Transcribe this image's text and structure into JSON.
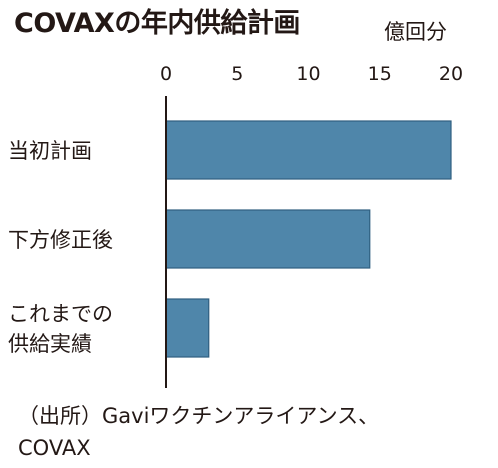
{
  "header": {
    "title": "COVAXの年内供給計画",
    "unit": "億回分"
  },
  "source": {
    "line1": "（出所）Gaviワクチンアライアンス、",
    "line2": "COVAX"
  },
  "colors": {
    "bar": "#4f86aa",
    "bar_stroke": "#2f5f80",
    "axis": "#231815",
    "text": "#231815"
  },
  "chart_data": {
    "type": "bar",
    "orientation": "horizontal",
    "categories": [
      [
        "当初計画"
      ],
      [
        "下方修正後"
      ],
      [
        "これまでの",
        "供給実績"
      ]
    ],
    "values": [
      20,
      14.3,
      3
    ],
    "title": "COVAXの年内供給計画",
    "unit_label": "億回分",
    "xlim": [
      0,
      20
    ],
    "xticks": [
      0,
      5,
      10,
      15,
      20
    ],
    "grid": false,
    "legend": "none"
  }
}
